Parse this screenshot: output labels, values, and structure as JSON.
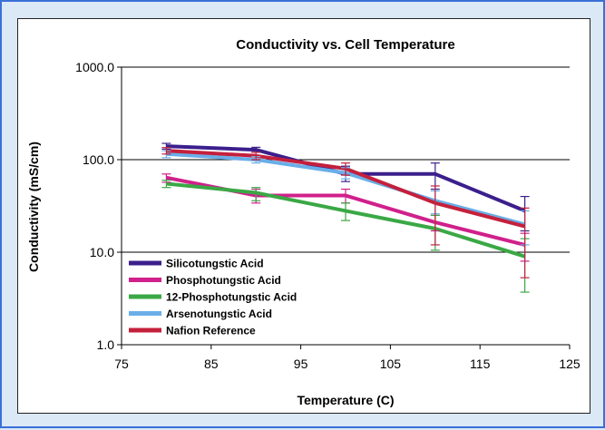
{
  "chart_data": {
    "type": "line",
    "title": "Conductivity vs. Cell Temperature",
    "xlabel": "Temperature (C)",
    "ylabel": "Conductivity (mS/cm)",
    "xlim": [
      75,
      125
    ],
    "ylim": [
      1,
      1000
    ],
    "yscale": "log",
    "x_ticks": [
      "75",
      "85",
      "95",
      "105",
      "115",
      "125"
    ],
    "y_ticks": [
      "1.0",
      "10.0",
      "100.0",
      "1000.0"
    ],
    "grid": "horizontal major",
    "legend_position": "lower-left inside plot",
    "series": [
      {
        "name": "Silicotungstic Acid",
        "color": "#3b1f8c",
        "x": [
          80,
          90,
          100,
          110,
          120
        ],
        "y": [
          140,
          128,
          70,
          70,
          28
        ],
        "err_low": [
          130,
          120,
          58,
          48,
          17
        ],
        "err_high": [
          150,
          136,
          85,
          92,
          40
        ]
      },
      {
        "name": "Phosphotungstic Acid",
        "color": "#d0208c",
        "x": [
          80,
          90,
          100,
          110,
          120
        ],
        "y": [
          64,
          41,
          41,
          21,
          12
        ],
        "err_low": [
          57,
          34,
          34,
          17,
          8
        ],
        "err_high": [
          70,
          48,
          48,
          25,
          16
        ]
      },
      {
        "name": "12-Phosphotungstic Acid",
        "color": "#3aa845",
        "x": [
          80,
          90,
          100,
          110,
          120
        ],
        "y": [
          55,
          44,
          28,
          18,
          9
        ],
        "err_low": [
          50,
          36,
          22,
          10.5,
          3.7
        ],
        "err_high": [
          60,
          50,
          34,
          25,
          14
        ]
      },
      {
        "name": "Arsenotungstic Acid",
        "color": "#6aaee8",
        "x": [
          80,
          90,
          100,
          110,
          120
        ],
        "y": [
          115,
          100,
          72,
          36,
          20
        ],
        "err_low": [
          105,
          92,
          62,
          26,
          12
        ],
        "err_high": [
          125,
          108,
          82,
          46,
          28
        ]
      },
      {
        "name": "Nafion Reference",
        "color": "#c4203c",
        "x": [
          80,
          90,
          100,
          110,
          120
        ],
        "y": [
          125,
          110,
          80,
          34,
          19
        ],
        "err_low": [
          115,
          100,
          68,
          12,
          5.3
        ],
        "err_high": [
          135,
          120,
          92,
          52,
          30
        ]
      }
    ]
  }
}
